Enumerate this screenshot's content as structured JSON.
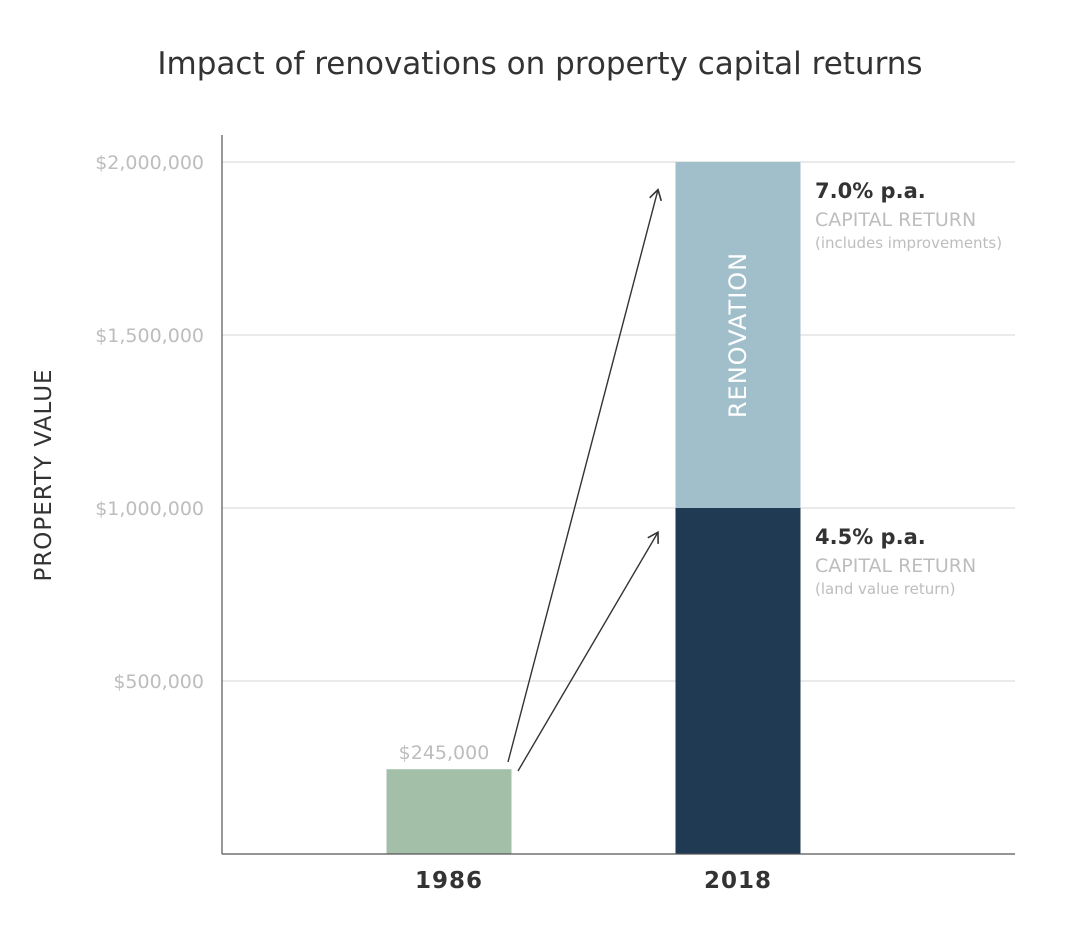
{
  "chart_data": {
    "type": "bar",
    "title": "Impact of renovations on property capital returns",
    "xlabel": "",
    "ylabel": "PROPERTY VALUE",
    "ylim": [
      0,
      2000000
    ],
    "yticks": [
      {
        "value": 500000,
        "label": "$500,000"
      },
      {
        "value": 1000000,
        "label": "$1,000,000"
      },
      {
        "value": 1500000,
        "label": "$1,500,000"
      },
      {
        "value": 2000000,
        "label": "$2,000,000"
      }
    ],
    "categories": [
      "1986",
      "2018"
    ],
    "grid": true,
    "bars": [
      {
        "category": "1986",
        "segments": [
          {
            "value": 245000,
            "color": "#a3bfa8",
            "label": ""
          }
        ],
        "value_label": "$245,000"
      },
      {
        "category": "2018",
        "segments": [
          {
            "value": 1000000,
            "color": "#1f3a52",
            "label": ""
          },
          {
            "value": 1000000,
            "color": "#a1bfcb",
            "label": "RENOVATION"
          }
        ],
        "value_label": ""
      }
    ],
    "annotations": [
      {
        "target_value": 1920000,
        "rate": "7.0% p.a.",
        "label": "CAPITAL RETURN",
        "note": "(includes improvements)"
      },
      {
        "target_value": 930000,
        "rate": "4.5% p.a.",
        "label": "CAPITAL RETURN",
        "note": "(land value return)"
      }
    ]
  }
}
